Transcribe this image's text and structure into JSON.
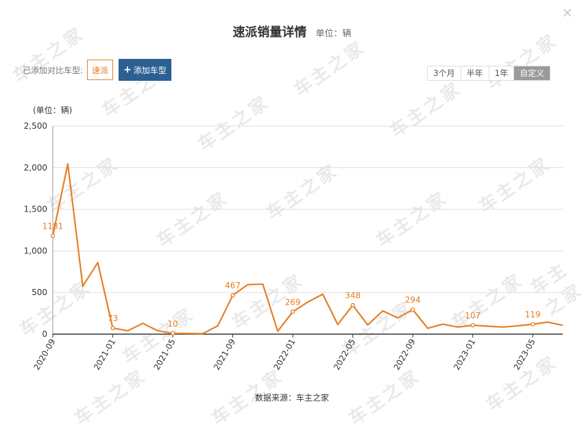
{
  "header": {
    "title": "速派销量详情",
    "unit": "单位：辆",
    "close": "×"
  },
  "compare": {
    "label": "已添加对比车型:",
    "model": "速派",
    "add_label": "添加车型"
  },
  "range_tabs": [
    {
      "label": "3个月",
      "active": false
    },
    {
      "label": "半年",
      "active": false
    },
    {
      "label": "1年",
      "active": false
    },
    {
      "label": "自定义",
      "active": true
    }
  ],
  "footer": {
    "source": "数据来源：车主之家"
  },
  "watermark": "车主之家",
  "colors": {
    "line": "#e67e22",
    "add_button": "#2c5f92",
    "grid": "#dddddd"
  },
  "chart_data": {
    "type": "line",
    "ylabel": "(单位：辆)",
    "ylim": [
      0,
      2500
    ],
    "yticks": [
      0,
      500,
      1000,
      1500,
      2000,
      2500
    ],
    "ytick_labels": [
      "0",
      "500",
      "1,000",
      "1,500",
      "2,000",
      "2,500"
    ],
    "x": [
      "2020-09",
      "2020-10",
      "2020-11",
      "2020-12",
      "2021-01",
      "2021-02",
      "2021-03",
      "2021-04",
      "2021-05",
      "2021-06",
      "2021-07",
      "2021-08",
      "2021-09",
      "2021-10",
      "2021-11",
      "2021-12",
      "2022-01",
      "2022-02",
      "2022-03",
      "2022-04",
      "2022-05",
      "2022-06",
      "2022-07",
      "2022-08",
      "2022-09",
      "2022-10",
      "2022-11",
      "2022-12",
      "2023-01",
      "2023-02",
      "2023-03",
      "2023-04",
      "2023-05",
      "2023-06",
      "2023-07"
    ],
    "xtick_labels": [
      "2020-09",
      "2021-01",
      "2021-05",
      "2021-09",
      "2022-01",
      "2022-05",
      "2022-09",
      "2023-01",
      "2023-05"
    ],
    "series": [
      {
        "values": [
          1181,
          2045,
          575,
          860,
          73,
          40,
          130,
          40,
          10,
          8,
          5,
          100,
          467,
          595,
          600,
          35,
          269,
          385,
          480,
          115,
          348,
          110,
          280,
          195,
          294,
          70,
          120,
          85,
          107,
          95,
          85,
          100,
          119,
          145,
          105
        ],
        "labeled": {
          "2020-09": 1181,
          "2021-01": 73,
          "2021-05": 10,
          "2021-09": 467,
          "2022-01": 269,
          "2022-05": 348,
          "2022-09": 294,
          "2023-01": 107,
          "2023-05": 119
        }
      }
    ]
  }
}
